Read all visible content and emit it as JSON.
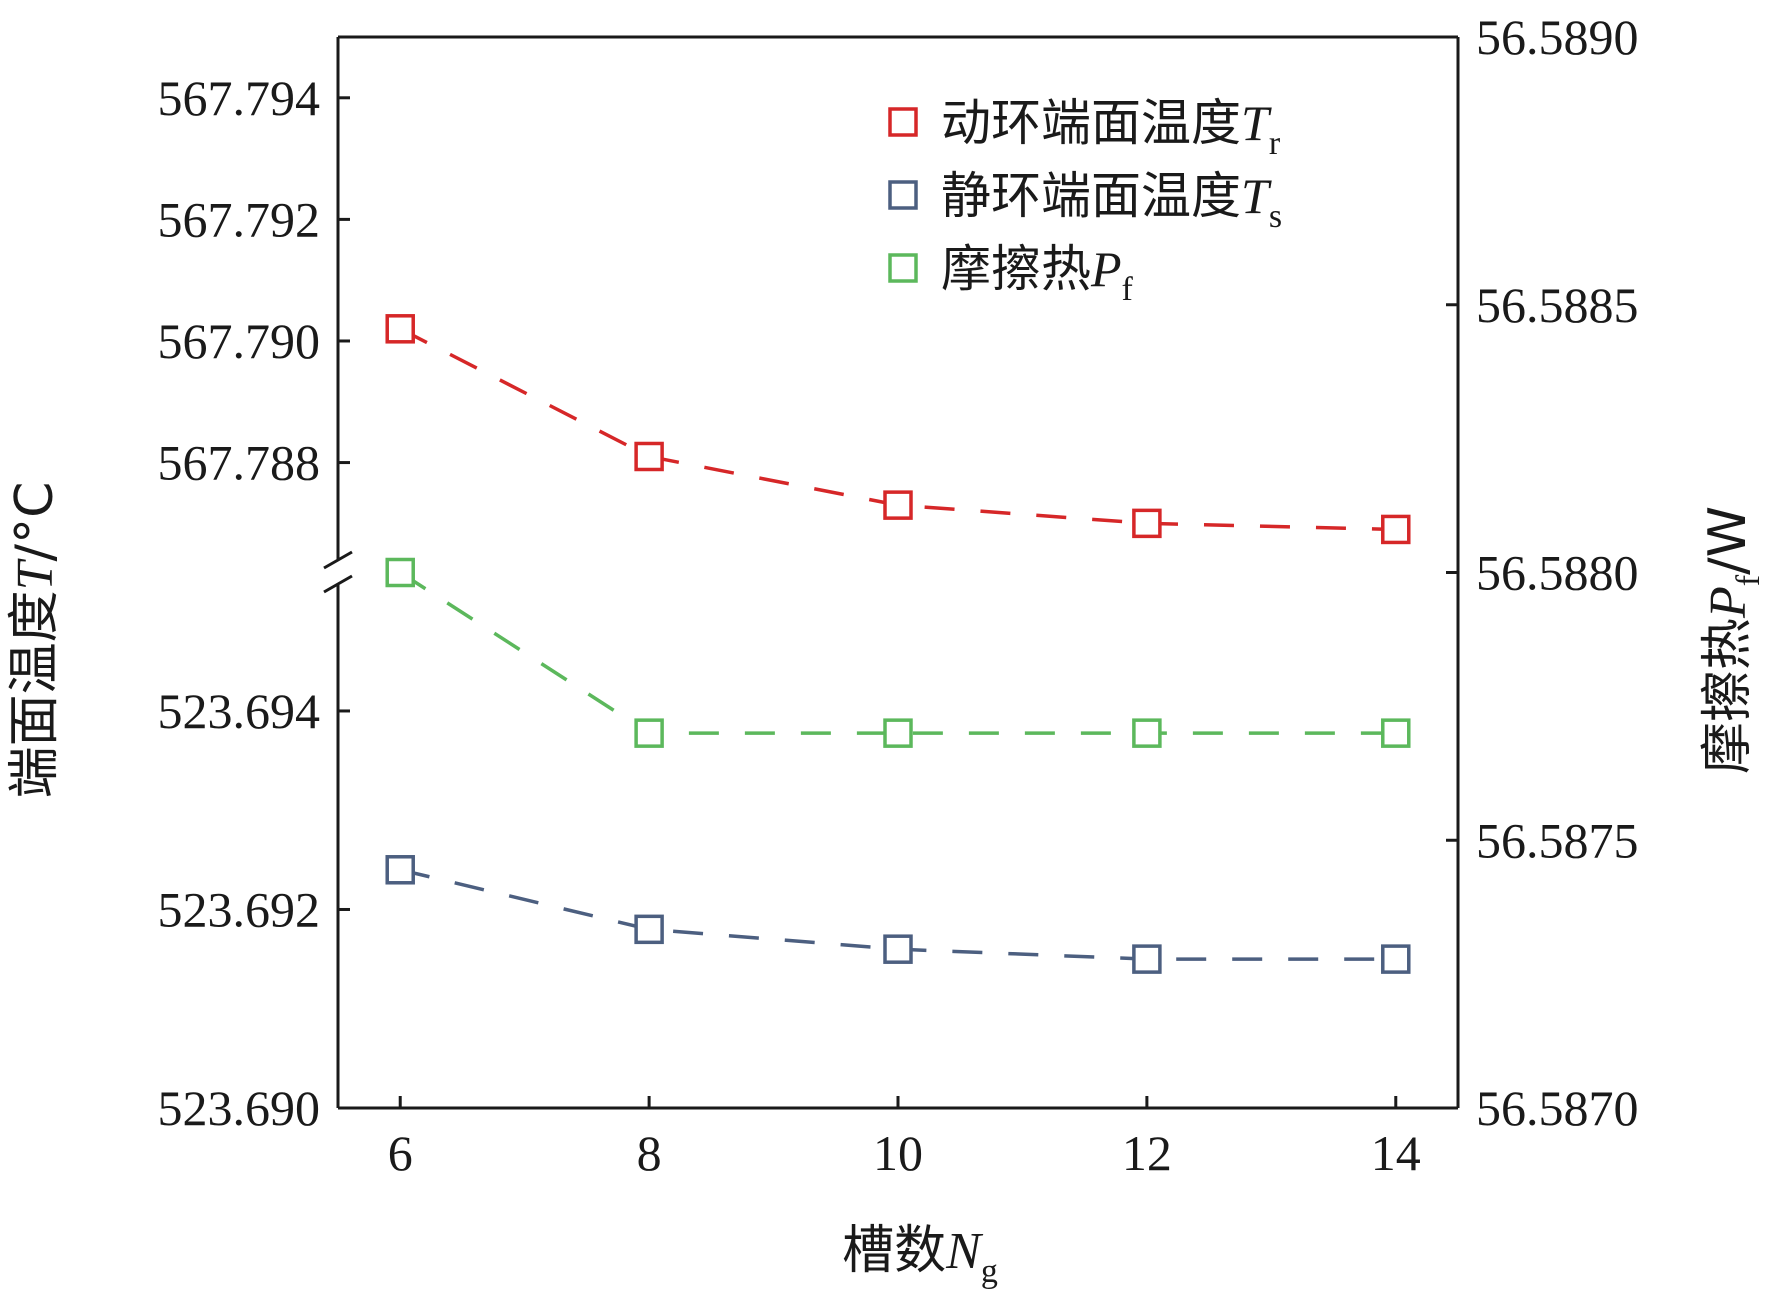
{
  "chart_data": {
    "type": "line",
    "x": [
      6,
      8,
      10,
      12,
      14
    ],
    "xticks": [
      "6",
      "8",
      "10",
      "12",
      "14"
    ],
    "xlabel": {
      "text": "槽数",
      "var": "N",
      "sub": "g"
    },
    "left_axis": {
      "label": {
        "text": "端面温度",
        "var": "T",
        "unit": "/°C"
      },
      "broken": true,
      "upper_segment": {
        "range": [
          567.7862,
          567.795
        ],
        "ticks": [
          "567.794",
          "567.792",
          "567.790",
          "567.788"
        ]
      },
      "lower_segment": {
        "range": [
          523.69,
          523.6954
        ],
        "ticks": [
          "523.694",
          "523.692",
          "523.690"
        ]
      }
    },
    "right_axis": {
      "label": {
        "text": "摩擦热",
        "var": "P",
        "sub": "f",
        "unit": "/W"
      },
      "range": [
        56.587,
        56.589
      ],
      "ticks": [
        "56.5890",
        "56.5885",
        "56.5880",
        "56.5875",
        "56.5870"
      ]
    },
    "series": [
      {
        "name": "动环端面温度",
        "var": "T",
        "sub": "r",
        "color": "#d62728",
        "axis": "left-upper",
        "values": [
          567.7902,
          567.7881,
          567.7873,
          567.787,
          567.7869
        ]
      },
      {
        "name": "静环端面温度",
        "var": "T",
        "sub": "s",
        "color": "#4c5f80",
        "axis": "left-lower",
        "values": [
          523.6924,
          523.6918,
          523.6916,
          523.6915,
          523.6915
        ]
      },
      {
        "name": "摩擦热",
        "var": "P",
        "sub": "f",
        "color": "#5cb85c",
        "axis": "right",
        "values": [
          56.588,
          56.5877,
          56.5877,
          56.5877,
          56.5877
        ]
      }
    ],
    "legend_position": "top-right",
    "grid": false,
    "marker": "square-open",
    "line_style": "dashed"
  }
}
